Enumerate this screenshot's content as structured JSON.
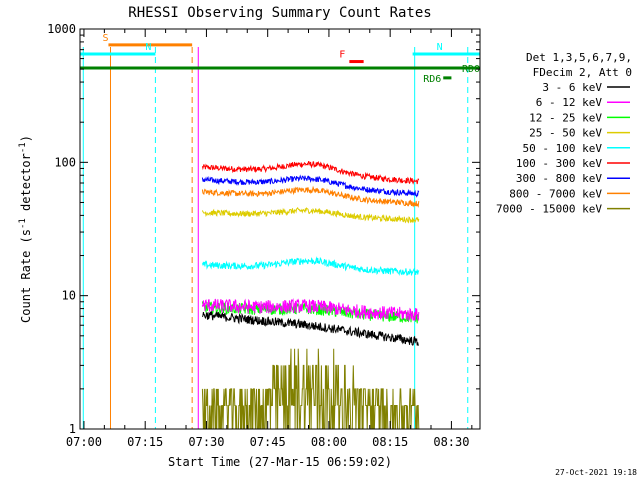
{
  "chart_data": {
    "type": "line",
    "title": "RHESSI Observing Summary Count Rates",
    "xlabel": "Start Time (27-Mar-15 06:59:02)",
    "ylabel_parts": [
      "Count Rate (s",
      "-1",
      " detector",
      "-1",
      ")"
    ],
    "y_scale": "log",
    "ylim": [
      1,
      1000
    ],
    "xlim": [
      "06:59:02",
      "08:37:00"
    ],
    "x_ticks": [
      "07:00",
      "07:15",
      "07:30",
      "07:45",
      "08:00",
      "08:15",
      "08:30"
    ],
    "y_ticks": [
      {
        "value": 1,
        "label": "1"
      },
      {
        "value": 10,
        "label": "10"
      },
      {
        "value": 100,
        "label": "100"
      },
      {
        "value": 1000,
        "label": "1000"
      }
    ],
    "data_start": "07:29:00",
    "data_end": "08:22:00",
    "legend": {
      "placement": "right",
      "header": [
        "Det 1,3,5,6,7,9,",
        "FDecim 2, Att 0"
      ],
      "entries": [
        {
          "label": "3 - 6 keV",
          "color": "#000000"
        },
        {
          "label": "6 - 12 keV",
          "color": "#ff00ff"
        },
        {
          "label": "12 - 25 keV",
          "color": "#00ff00"
        },
        {
          "label": "25 - 50 keV",
          "color": "#ddcc00"
        },
        {
          "label": "50 - 100 keV",
          "color": "#00ffff"
        },
        {
          "label": "100 - 300 keV",
          "color": "#ff0000"
        },
        {
          "label": "300 - 800 keV",
          "color": "#0000ff"
        },
        {
          "label": "800 - 7000 keV",
          "color": "#ff8000"
        },
        {
          "label": "7000 - 15000 keV",
          "color": "#808000"
        }
      ]
    },
    "series": [
      {
        "name": "100 - 300 keV",
        "color": "#ff0000",
        "base": 92,
        "bump": 0.18,
        "end": 72,
        "noise": 0.05
      },
      {
        "name": "300 - 800 keV",
        "color": "#0000ff",
        "base": 74,
        "bump": 0.14,
        "end": 58,
        "noise": 0.05
      },
      {
        "name": "800 - 7000 keV",
        "color": "#ff8000",
        "base": 60,
        "bump": 0.14,
        "end": 49,
        "noise": 0.05
      },
      {
        "name": "25 - 50 keV",
        "color": "#ddcc00",
        "base": 42,
        "bump": 0.1,
        "end": 37,
        "noise": 0.05
      },
      {
        "name": "50 - 100 keV",
        "color": "#00ffff",
        "base": 17,
        "bump": 0.14,
        "end": 15,
        "noise": 0.06
      },
      {
        "name": "12 - 25 keV",
        "color": "#00ff00",
        "base": 8.2,
        "bump": 0.06,
        "end": 6.8,
        "noise": 0.1
      },
      {
        "name": "6 - 12 keV",
        "color": "#ff00ff",
        "base": 8.5,
        "bump": 0.06,
        "end": 7.2,
        "noise": 0.12
      },
      {
        "name": "3 - 6 keV",
        "color": "#000000",
        "base": 7.2,
        "bump": 0.02,
        "end": 4.5,
        "noise": 0.08
      },
      {
        "name": "7000 - 15000 keV",
        "color": "#808000",
        "base": 2.3,
        "bump": 0.35,
        "end": 2.0,
        "noise": 0.3
      }
    ],
    "flags": [
      {
        "label": "S",
        "color": "#ff8000",
        "start": "07:06:00",
        "end": "07:26:30",
        "level": 760
      },
      {
        "label": "N",
        "color": "#00ffff",
        "start": "06:59:02",
        "end": "07:17:30",
        "level": 650
      },
      {
        "label": "N",
        "color": "#00ffff",
        "start": "08:20:30",
        "end": "08:37:00",
        "level": 650
      },
      {
        "label": "F",
        "color": "#ff0000",
        "start": "08:05:00",
        "end": "08:08:30",
        "level": 570
      },
      {
        "label": "RD0",
        "color": "#008000",
        "start": "06:59:02",
        "end": "08:37:00",
        "level": 510
      },
      {
        "label": "RD6",
        "color": "#008000",
        "start": "08:28:00",
        "end": "08:30:00",
        "level": 430
      }
    ],
    "vlines": [
      {
        "time": "07:06:30",
        "color": "#ff8000",
        "style": "solid"
      },
      {
        "time": "07:17:30",
        "color": "#00ffff",
        "style": "dashed"
      },
      {
        "time": "07:26:30",
        "color": "#ff8000",
        "style": "dashed"
      },
      {
        "time": "07:28:00",
        "color": "#ff00ff",
        "style": "solid"
      },
      {
        "time": "08:21:00",
        "color": "#00ffff",
        "style": "solid"
      },
      {
        "time": "08:34:00",
        "color": "#00ffff",
        "style": "dashed"
      },
      {
        "time": "06:59:50",
        "color": "#00ffff",
        "style": "solid"
      }
    ],
    "footer_date": "27-Oct-2021 19:18"
  }
}
